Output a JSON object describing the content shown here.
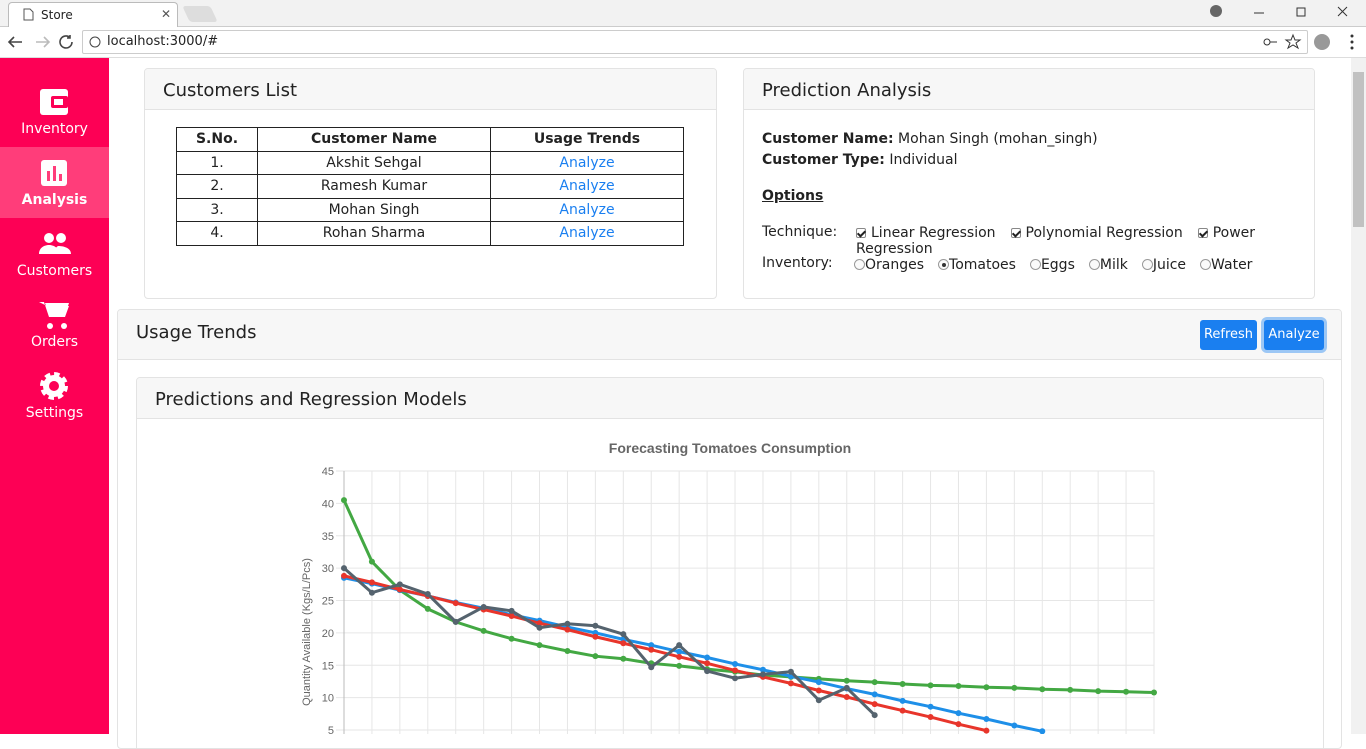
{
  "browser": {
    "tab_title": "Store",
    "url": "localhost:3000/#"
  },
  "sidebar": {
    "items": [
      "Inventory",
      "Analysis",
      "Customers",
      "Orders",
      "Settings"
    ],
    "active": 1
  },
  "customers_card": {
    "title": "Customers List",
    "headers": [
      "S.No.",
      "Customer Name",
      "Usage Trends"
    ],
    "rows": [
      [
        "1.",
        "Akshit Sehgal",
        "Analyze"
      ],
      [
        "2.",
        "Ramesh Kumar",
        "Analyze"
      ],
      [
        "3.",
        "Mohan Singh",
        "Analyze"
      ],
      [
        "4.",
        "Rohan Sharma",
        "Analyze"
      ]
    ]
  },
  "prediction_card": {
    "title": "Prediction Analysis",
    "customer_name_label": "Customer Name:",
    "customer_name": "Mohan Singh (mohan_singh)",
    "customer_type_label": "Customer Type:",
    "customer_type": "Individual",
    "options_title": "Options",
    "technique_label": "Technique:",
    "techniques": [
      {
        "label": "Linear Regression",
        "checked": true
      },
      {
        "label": "Polynomial Regression",
        "checked": true
      },
      {
        "label": "Power Regression",
        "checked": true
      }
    ],
    "inventory_label": "Inventory:",
    "inventory": [
      "Oranges",
      "Tomatoes",
      "Eggs",
      "Milk",
      "Juice",
      "Water"
    ],
    "selected_inventory": 1
  },
  "usage_card": {
    "title": "Usage Trends",
    "buttons": [
      "Refresh",
      "Analyze"
    ]
  },
  "models_card": {
    "title": "Predictions and Regression Models"
  },
  "chart_data": {
    "type": "line",
    "title": "Forecasting Tomatoes Consumption",
    "y_label": "Quantity Available (Kgs/L/Pcs)",
    "categories": [
      null,
      null,
      null,
      null,
      null,
      null,
      null,
      null,
      null,
      null,
      null,
      null,
      null,
      null,
      null,
      null,
      null,
      null,
      null,
      null,
      null,
      null,
      null,
      null,
      null,
      null,
      null,
      null,
      null,
      null
    ],
    "series": [
      {
        "color": "#43a843",
        "values": [
          40.5,
          31.0,
          26.6,
          23.7,
          21.7,
          20.3,
          19.1,
          18.1,
          17.2,
          16.4,
          16.0,
          15.3,
          14.9,
          14.4,
          14.0,
          13.5,
          13.2,
          12.9,
          12.6,
          12.4,
          12.1,
          11.9,
          11.8,
          11.6,
          11.5,
          11.3,
          11.2,
          11.0,
          10.9,
          10.8
        ]
      },
      {
        "color": "#1e8fe8",
        "values": [
          28.5,
          27.6,
          26.6,
          25.7,
          24.7,
          23.8,
          22.8,
          21.9,
          20.9,
          20.0,
          19.0,
          18.1,
          17.1,
          16.2,
          15.2,
          14.3,
          13.3,
          12.4,
          11.4,
          10.5,
          9.5,
          8.6,
          7.6,
          6.7,
          5.7,
          4.8,
          null,
          null,
          null,
          null
        ]
      },
      {
        "color": "#e8352b",
        "values": [
          28.8,
          27.8,
          26.7,
          25.7,
          24.6,
          23.6,
          22.6,
          21.5,
          20.5,
          19.4,
          18.4,
          17.4,
          16.3,
          15.3,
          14.2,
          13.2,
          12.2,
          11.1,
          10.1,
          9.0,
          8.0,
          7.0,
          5.9,
          4.9,
          null,
          null,
          null,
          null,
          null,
          null
        ]
      },
      {
        "color": "#55636e",
        "values": [
          30.0,
          26.2,
          27.5,
          26.0,
          21.7,
          24.0,
          23.4,
          20.8,
          21.4,
          21.1,
          19.8,
          14.7,
          18.1,
          14.1,
          13.0,
          13.6,
          14.0,
          9.6,
          11.5,
          7.3,
          null,
          null,
          null,
          null,
          null,
          null,
          null,
          null,
          null,
          null
        ]
      }
    ],
    "ylim": [
      0,
      45
    ],
    "yticks": [
      5,
      10,
      15,
      20,
      25,
      30,
      35,
      40,
      45
    ],
    "grid": true
  }
}
